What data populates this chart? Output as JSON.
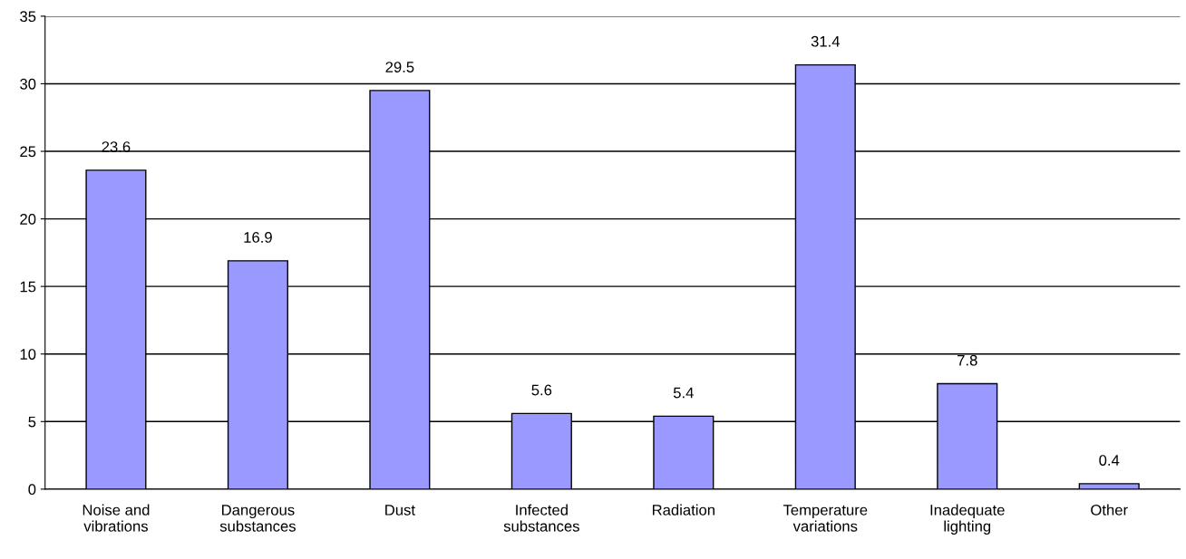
{
  "chart_data": {
    "type": "bar",
    "categories": [
      "Noise and\nvibrations",
      "Dangerous\nsubstances",
      "Dust",
      "Infected\nsubstances",
      "Radiation",
      "Temperature\nvariations",
      "Inadequate\nlighting",
      "Other"
    ],
    "values": [
      23.6,
      16.9,
      29.5,
      5.6,
      5.4,
      31.4,
      7.8,
      0.4
    ],
    "color": "#9999ff",
    "ylim": [
      0,
      35
    ],
    "yticks": [
      0,
      5,
      10,
      15,
      20,
      25,
      30,
      35
    ],
    "grid": "y",
    "data_labels": true,
    "legend": false
  }
}
